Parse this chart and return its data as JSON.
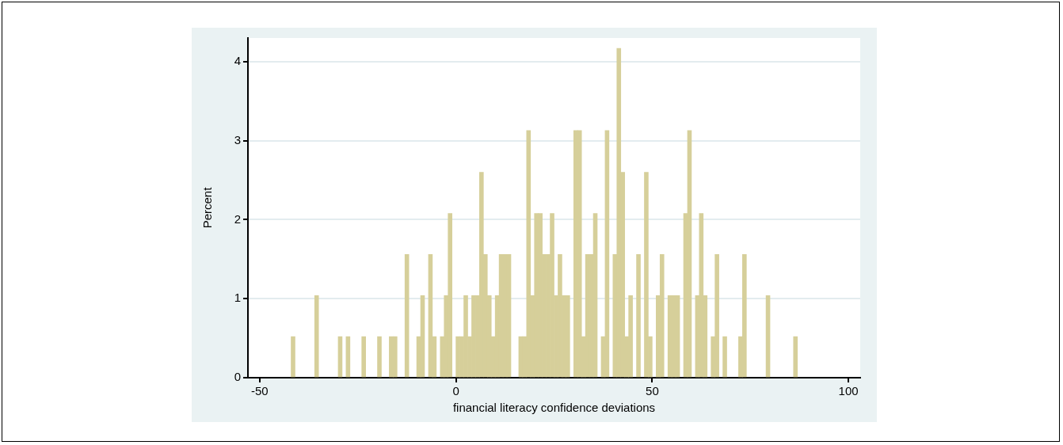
{
  "chart_data": {
    "type": "histogram",
    "xlabel": "financial literacy confidence deviations",
    "ylabel": "Percent",
    "bins": [
      -42,
      -41,
      -40,
      -39,
      -38,
      -37,
      -36,
      -35,
      -34,
      -33,
      -32,
      -31,
      -30,
      -29,
      -28,
      -27,
      -26,
      -25,
      -24,
      -23,
      -22,
      -21,
      -20,
      -19,
      -18,
      -17,
      -16,
      -15,
      -14,
      -13,
      -12,
      -11,
      -10,
      -9,
      -8,
      -7,
      -6,
      -5,
      -4,
      -3,
      -2,
      -1,
      0,
      1,
      2,
      3,
      4,
      5,
      6,
      7,
      8,
      9,
      10,
      11,
      12,
      13,
      14,
      15,
      16,
      17,
      18,
      19,
      20,
      21,
      22,
      23,
      24,
      25,
      26,
      27,
      28,
      29,
      30,
      31,
      32,
      33,
      34,
      35,
      36,
      37,
      38,
      39,
      40,
      41,
      42,
      43,
      44,
      45,
      46,
      47,
      48,
      49,
      50,
      51,
      52,
      53,
      54,
      55,
      56,
      57,
      58,
      59,
      60,
      61,
      62,
      63,
      64,
      65,
      66,
      67,
      68,
      69,
      70,
      71,
      72,
      73,
      74,
      75,
      76,
      77,
      78,
      79,
      80,
      81,
      82,
      83,
      84,
      85,
      86,
      87
    ],
    "values": [
      0.52,
      0,
      0,
      0,
      0,
      0,
      1.04,
      0,
      0,
      0,
      0,
      0,
      0.52,
      0,
      0.52,
      0,
      0,
      0,
      0.52,
      0,
      0,
      0,
      0.52,
      0,
      0,
      0.52,
      0.52,
      0,
      0,
      1.56,
      0,
      0,
      0.52,
      1.04,
      0,
      1.56,
      0.52,
      0,
      0.52,
      1.04,
      2.08,
      0,
      0.52,
      0.52,
      1.04,
      0.52,
      1.04,
      1.04,
      2.6,
      1.56,
      1.04,
      0.52,
      1.04,
      1.56,
      1.56,
      1.56,
      0,
      0,
      0.52,
      0.52,
      3.13,
      1.04,
      2.08,
      2.08,
      1.56,
      1.56,
      2.08,
      1.04,
      1.56,
      1.04,
      1.04,
      0,
      3.13,
      3.13,
      0.52,
      1.56,
      1.56,
      2.08,
      0,
      0.52,
      3.13,
      0,
      1.56,
      4.17,
      2.6,
      0.52,
      1.04,
      0,
      1.56,
      0,
      2.6,
      0.52,
      0,
      1.04,
      1.56,
      0,
      1.04,
      1.04,
      1.04,
      0,
      2.08,
      3.13,
      0,
      1.04,
      2.08,
      1.04,
      0,
      0.52,
      1.56,
      0,
      0.52,
      0,
      0,
      0,
      0.52,
      1.56,
      0,
      0,
      0,
      0,
      0,
      1.04,
      0,
      0,
      0,
      0,
      0,
      0,
      0.52
    ],
    "color": "#d6cf9a",
    "xlim": [
      -53,
      103
    ],
    "ylim": [
      0,
      4.3
    ],
    "xticks": [
      -50,
      0,
      50,
      100
    ],
    "yticks": [
      0,
      1,
      2,
      3,
      4
    ],
    "grid": "y"
  }
}
